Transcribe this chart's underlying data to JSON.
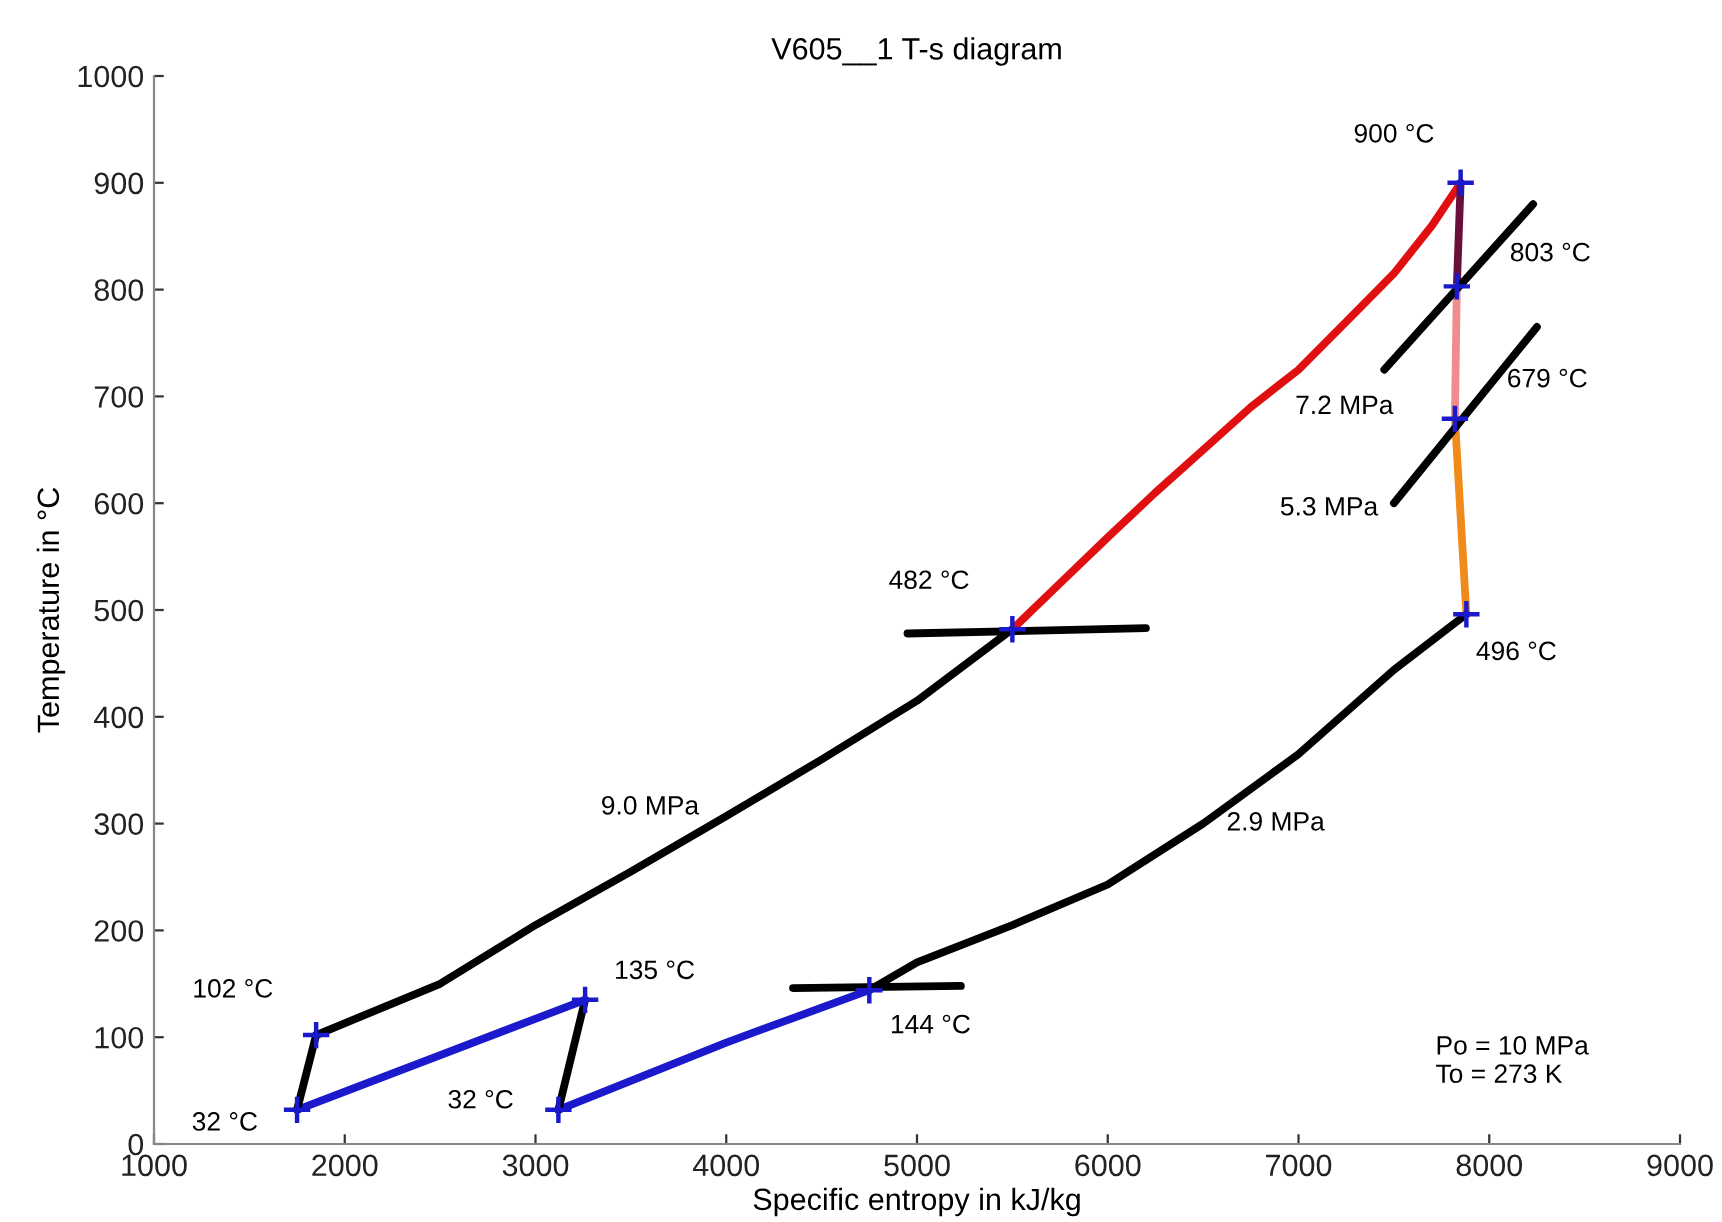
{
  "chart_data": {
    "type": "line",
    "title": "V605__1 T-s diagram",
    "xlabel": "Specific entropy in kJ/kg",
    "ylabel": "Temperature in °C",
    "xlim": [
      1000,
      9000
    ],
    "xticks": [
      1000,
      2000,
      3000,
      4000,
      5000,
      6000,
      7000,
      8000,
      9000
    ],
    "ylim": [
      0,
      1000
    ],
    "yticks": [
      0,
      100,
      200,
      300,
      400,
      500,
      600,
      700,
      800,
      900,
      1000
    ],
    "grid": false,
    "legend": false,
    "marker": "none",
    "line_style": "solid",
    "series": [
      {
        "color": "#000000",
        "x": [
          1850,
          2500,
          3000,
          3500,
          4000,
          4500,
          5000,
          5500
        ],
        "values": [
          102,
          150,
          205,
          255,
          307,
          360,
          415,
          482
        ]
      },
      {
        "color": "#e01010",
        "x": [
          5500,
          5750,
          6000,
          6250,
          6500,
          6750,
          7000,
          7250,
          7500,
          7700,
          7850
        ],
        "values": [
          482,
          525,
          568,
          610,
          650,
          690,
          725,
          770,
          815,
          860,
          900
        ]
      },
      {
        "color": "#6a0f3c",
        "x": [
          7850,
          7830
        ],
        "values": [
          900,
          803
        ]
      },
      {
        "color": "#f08c8c",
        "x": [
          7830,
          7820
        ],
        "values": [
          803,
          679
        ]
      },
      {
        "color": "#f08a1a",
        "x": [
          7820,
          7880
        ],
        "values": [
          679,
          496
        ]
      },
      {
        "color": "#000000",
        "x": [
          7880,
          7500,
          7000,
          6500,
          6000,
          5500,
          5000,
          4750
        ],
        "values": [
          496,
          444,
          365,
          300,
          243,
          205,
          170,
          144
        ]
      },
      {
        "color": "#1a1acc",
        "x": [
          4750,
          4000,
          3120
        ],
        "values": [
          144,
          95,
          32
        ]
      },
      {
        "color": "#000000",
        "x": [
          3120,
          3260
        ],
        "values": [
          32,
          135
        ]
      },
      {
        "color": "#1a1acc",
        "x": [
          3260,
          1750
        ],
        "values": [
          135,
          32
        ]
      },
      {
        "color": "#000000",
        "x": [
          1750,
          1850
        ],
        "values": [
          32,
          102
        ]
      },
      {
        "color": "#000000",
        "x": [
          4950,
          6200
        ],
        "values": [
          478,
          483
        ]
      },
      {
        "color": "#000000",
        "x": [
          4350,
          5230
        ],
        "values": [
          146,
          148
        ]
      },
      {
        "color": "#000000",
        "x": [
          7450,
          8230
        ],
        "values": [
          725,
          880
        ]
      },
      {
        "color": "#000000",
        "x": [
          7500,
          8250
        ],
        "values": [
          600,
          765
        ]
      },
      {
        "type": "scatter",
        "marker": "cross",
        "color": "#1a1acc",
        "x": [
          1850,
          5500,
          7850,
          7830,
          7820,
          7880,
          4750,
          3120,
          3260,
          1750
        ],
        "values": [
          102,
          482,
          900,
          803,
          679,
          496,
          144,
          32,
          135,
          32
        ]
      }
    ],
    "annotations": [
      {
        "text": "900 °C",
        "x": 7850,
        "y": 900
      },
      "803 °C",
      "679 °C",
      "7.2 MPa",
      "5.3 MPa",
      {
        "text": "482 °C",
        "x": 5500,
        "y": 482
      },
      {
        "text": "496 °C",
        "x": 7880,
        "y": 496
      },
      "2.9 MPa",
      {
        "text": "144 °C",
        "x": 4750,
        "y": 144
      },
      "9.0 MPa",
      {
        "text": "102 °C",
        "x": 1850,
        "y": 102
      },
      {
        "text": "135 °C",
        "x": 3260,
        "y": 135
      },
      {
        "text": "32 °C",
        "x": 1750,
        "y": 32
      },
      {
        "text": "32 °C",
        "x": 3120,
        "y": 32
      },
      "Po = 10 MPa\nTo = 273 K"
    ]
  }
}
